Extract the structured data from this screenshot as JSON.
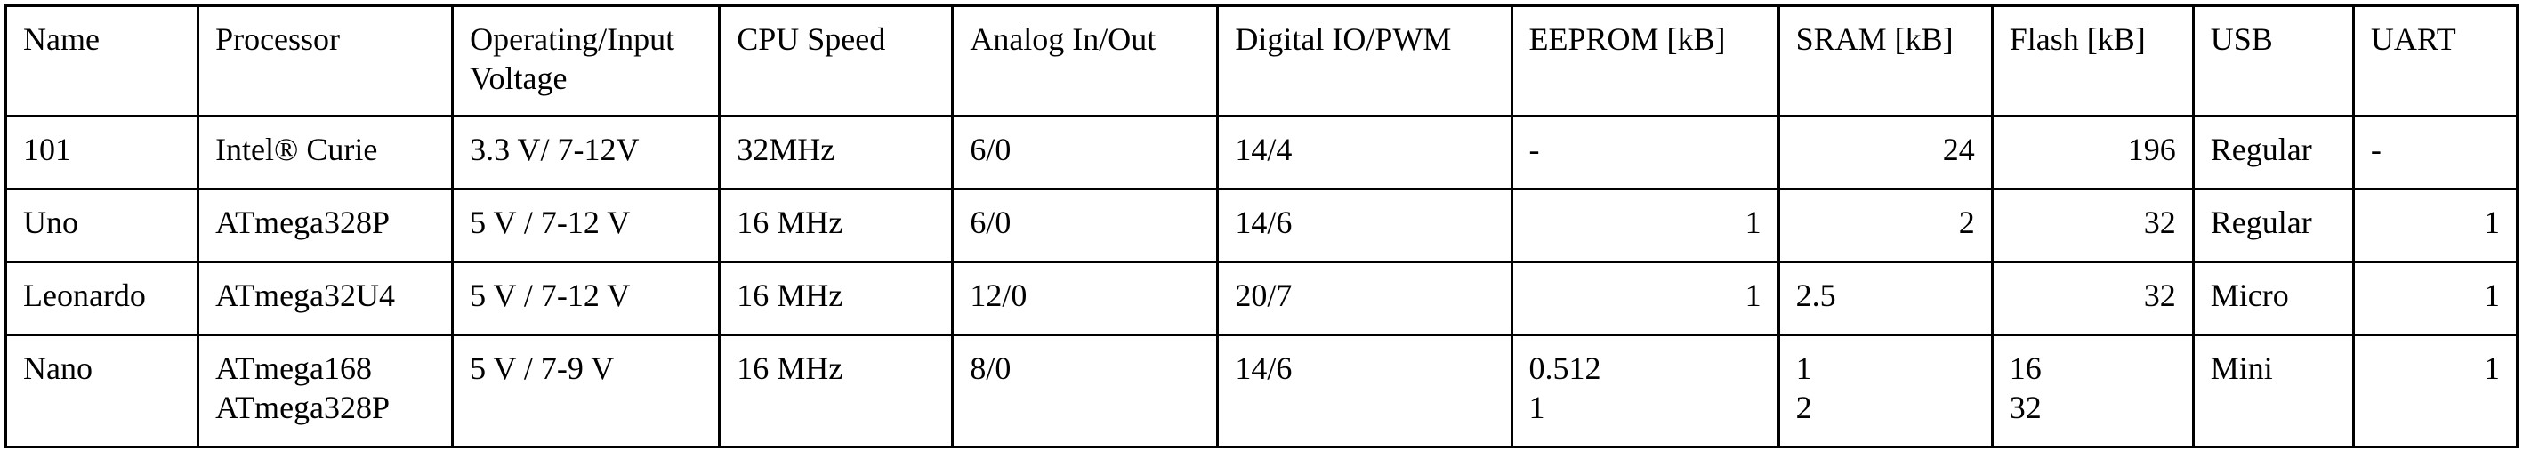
{
  "table": {
    "headers": [
      "Name",
      "Processor",
      "Operating/Input Voltage",
      "CPU Speed",
      "Analog In/Out",
      "Digital IO/PWM",
      "EEPROM [kB]",
      "SRAM [kB]",
      "Flash [kB]",
      "USB",
      "UART"
    ],
    "rows": [
      {
        "name": "101",
        "processor": [
          "Intel® Curie"
        ],
        "voltage": "3.3 V/ 7-12V",
        "cpu_speed": "32MHz",
        "analog": "6/0",
        "digital": "14/4",
        "eeprom": [
          "-"
        ],
        "sram": [
          "24"
        ],
        "flash": [
          "196"
        ],
        "usb": "Regular",
        "uart": "-"
      },
      {
        "name": "Uno",
        "processor": [
          "ATmega328P"
        ],
        "voltage": "5 V / 7-12 V",
        "cpu_speed": "16 MHz",
        "analog": "6/0",
        "digital": "14/6",
        "eeprom": [
          "1"
        ],
        "sram": [
          "2"
        ],
        "flash": [
          "32"
        ],
        "usb": "Regular",
        "uart": "1"
      },
      {
        "name": "Leonardo",
        "processor": [
          "ATmega32U4"
        ],
        "voltage": "5 V / 7-12 V",
        "cpu_speed": "16 MHz",
        "analog": "12/0",
        "digital": "20/7",
        "eeprom": [
          "1"
        ],
        "sram": [
          "2.5"
        ],
        "flash": [
          "32"
        ],
        "usb": "Micro",
        "uart": "1"
      },
      {
        "name": "Nano",
        "processor": [
          "ATmega168",
          "ATmega328P"
        ],
        "voltage": "5 V / 7-9 V",
        "cpu_speed": "16 MHz",
        "analog": "8/0",
        "digital": "14/6",
        "eeprom": [
          "0.512",
          "1"
        ],
        "sram": [
          "1",
          "2"
        ],
        "flash": [
          "16",
          "32"
        ],
        "usb": "Mini",
        "uart": "1"
      }
    ]
  }
}
